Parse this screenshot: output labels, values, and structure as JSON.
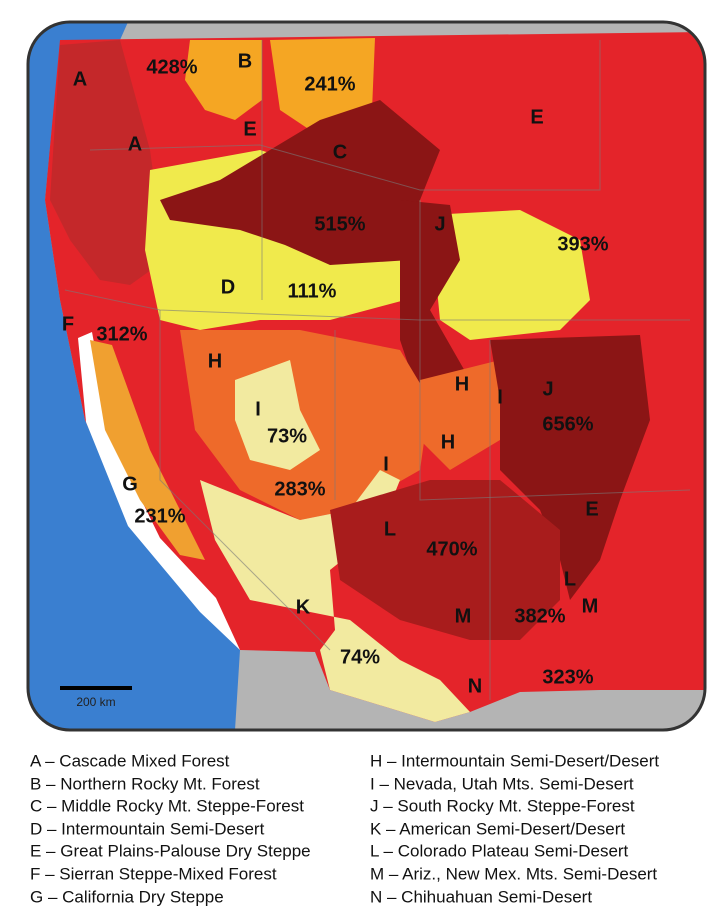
{
  "map": {
    "region_labels": [
      "A",
      "A",
      "B",
      "E",
      "C",
      "E",
      "J",
      "D",
      "F",
      "H",
      "H",
      "I",
      "J",
      "I",
      "H",
      "I",
      "G",
      "E",
      "L",
      "L",
      "K",
      "M",
      "M",
      "N"
    ],
    "percentages": [
      "428%",
      "241%",
      "515%",
      "393%",
      "111%",
      "312%",
      "73%",
      "656%",
      "283%",
      "231%",
      "470%",
      "382%",
      "74%",
      "323%"
    ],
    "scale_bar": "200 km"
  },
  "legend": {
    "left": [
      "A – Cascade Mixed Forest",
      "B – Northern Rocky Mt. Forest",
      "C – Middle Rocky Mt. Steppe-Forest",
      "D – Intermountain Semi-Desert",
      "E – Great Plains-Palouse Dry Steppe",
      "F – Sierran Steppe-Mixed Forest",
      "G – California Dry Steppe"
    ],
    "right": [
      "H – Intermountain Semi-Desert/Desert",
      "I – Nevada, Utah Mts. Semi-Desert",
      "J – South Rocky Mt. Steppe-Forest",
      "K – American Semi-Desert/Desert",
      "L – Colorado Plateau Semi-Desert",
      "M – Ariz., New Mex. Mts. Semi-Desert",
      "N – Chihuahuan Semi-Desert"
    ]
  }
}
